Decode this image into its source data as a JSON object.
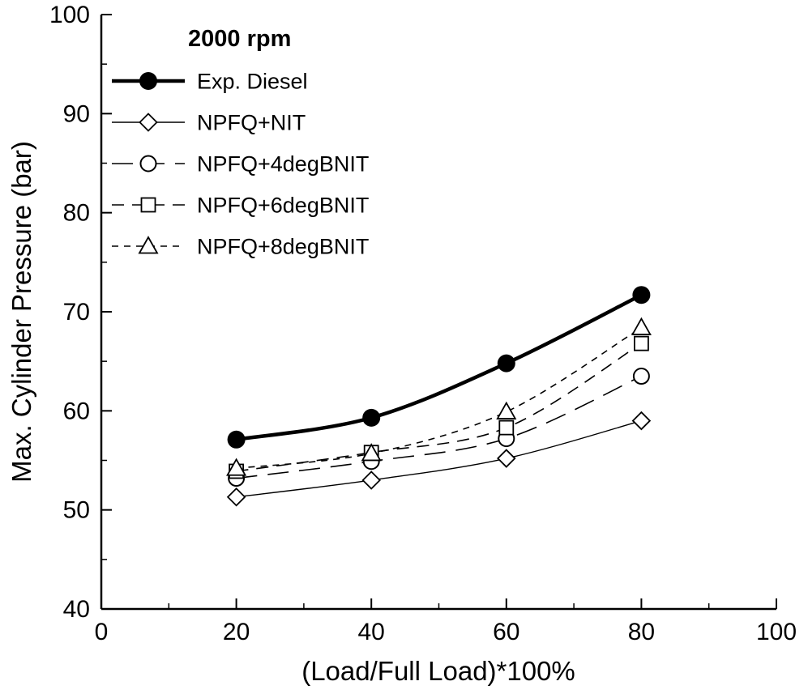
{
  "chart_data": {
    "type": "line",
    "title": "2000 rpm",
    "xlabel": "(Load/Full Load)*100%",
    "ylabel": "Max. Cylinder Pressure (bar)",
    "xlim": [
      0,
      100
    ],
    "ylim": [
      40,
      100
    ],
    "xticks": [
      0,
      20,
      40,
      60,
      80,
      100
    ],
    "yticks": [
      40,
      50,
      60,
      70,
      80,
      90,
      100
    ],
    "x_minor_step": 10,
    "y_minor_step": 5,
    "grid": false,
    "legend_position": "upper-left",
    "x": [
      20,
      40,
      60,
      80
    ],
    "series": [
      {
        "name": "Exp. Diesel",
        "marker": "filled-circle",
        "line": "solid-thick",
        "values": [
          57.1,
          59.3,
          64.8,
          71.7
        ]
      },
      {
        "name": "NPFQ+NIT",
        "marker": "open-diamond",
        "line": "solid-thin",
        "values": [
          51.3,
          53.0,
          55.2,
          59.0
        ]
      },
      {
        "name": "NPFQ+4degBNIT",
        "marker": "open-circle",
        "line": "long-dash",
        "values": [
          53.2,
          54.9,
          57.2,
          63.5
        ]
      },
      {
        "name": "NPFQ+6degBNIT",
        "marker": "open-square",
        "line": "medium-dash",
        "values": [
          53.9,
          55.8,
          58.3,
          66.8
        ]
      },
      {
        "name": "NPFQ+8degBNIT",
        "marker": "open-triangle",
        "line": "short-dash",
        "values": [
          54.2,
          55.7,
          59.9,
          68.4
        ]
      }
    ],
    "colors": {
      "line": "#000000",
      "background": "#ffffff",
      "marker_fill": "#ffffff"
    }
  }
}
